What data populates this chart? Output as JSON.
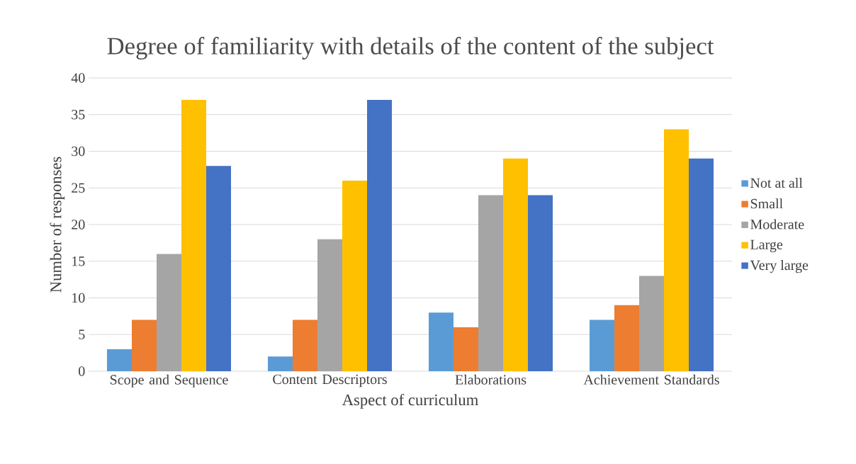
{
  "chart_data": {
    "type": "bar",
    "title": "Degree of familiarity with details of the content of the subject",
    "xlabel": "Aspect of curriculum",
    "ylabel": "Number of responses",
    "categories": [
      "Scope and Sequence",
      "Content Descriptors",
      "Elaborations",
      "Achievement Standards"
    ],
    "series": [
      {
        "name": "Not at all",
        "color": "#5b9bd5",
        "values": [
          3,
          2,
          8,
          7
        ]
      },
      {
        "name": "Small",
        "color": "#ed7d31",
        "values": [
          7,
          7,
          6,
          9
        ]
      },
      {
        "name": "Moderate",
        "color": "#a5a5a5",
        "values": [
          16,
          18,
          24,
          13
        ]
      },
      {
        "name": "Large",
        "color": "#ffc000",
        "values": [
          37,
          26,
          29,
          33
        ]
      },
      {
        "name": "Very large",
        "color": "#4472c4",
        "values": [
          28,
          37,
          24,
          29
        ]
      }
    ],
    "ylim": [
      0,
      40
    ],
    "yticks": [
      0,
      5,
      10,
      15,
      20,
      25,
      30,
      35,
      40
    ],
    "grid": "y",
    "legend": "right"
  }
}
